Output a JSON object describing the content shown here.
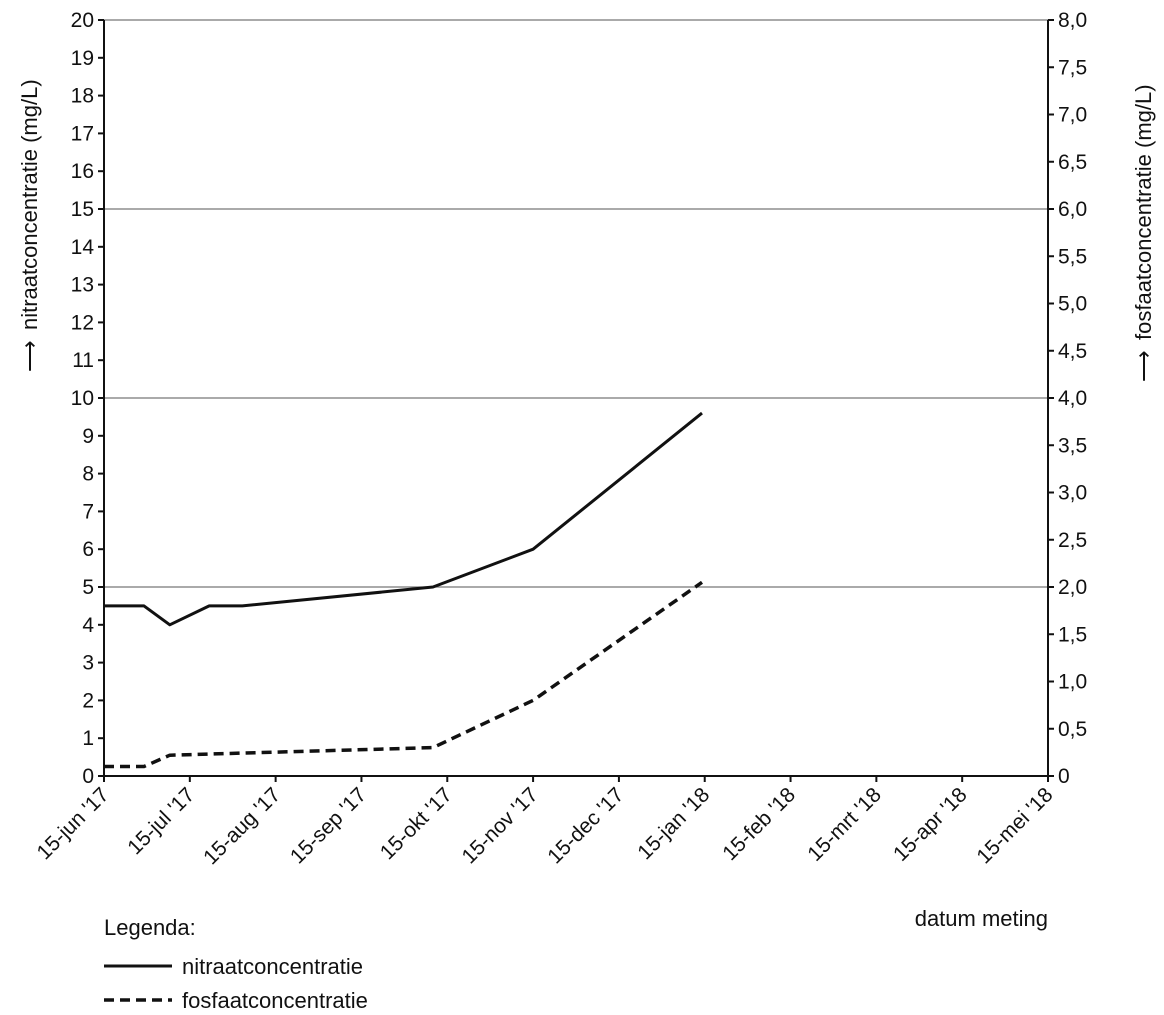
{
  "chart_data": {
    "type": "line",
    "title": "",
    "x": [
      "15-jun '17",
      "15-jul '17",
      "15-aug '17",
      "15-sep '17",
      "15-okt '17",
      "15-nov '17",
      "15-dec '17",
      "15-jan '18",
      "15-feb '18",
      "15-mrt '18",
      "15-apr '18",
      "15-mei '18"
    ],
    "xlabel": "datum meting",
    "ylabel_left": "nitraatconcentratie (mg/L)",
    "ylabel_right": "fosfaatconcentratie (mg/L)",
    "ylim_left": [
      0,
      20
    ],
    "ylim_right": [
      0,
      8.0
    ],
    "yticks_left": [
      "0",
      "1",
      "2",
      "3",
      "4",
      "5",
      "6",
      "7",
      "8",
      "9",
      "10",
      "11",
      "12",
      "13",
      "14",
      "15",
      "16",
      "17",
      "18",
      "19",
      "20"
    ],
    "yticks_right": [
      "0",
      "0,5",
      "1,0",
      "1,5",
      "2,0",
      "2,5",
      "3,0",
      "3,5",
      "4,0",
      "4,5",
      "5,0",
      "5,5",
      "6,0",
      "6,5",
      "7,0",
      "7,5",
      "8,0"
    ],
    "gridlines_left": [
      5,
      10,
      15
    ],
    "series": [
      {
        "name": "nitraatconcentratie",
        "axis": "left",
        "style": "solid",
        "points": [
          {
            "x": "15-jun '17",
            "y": 4.5
          },
          {
            "x": "29-jun '17",
            "y": 4.5
          },
          {
            "x": "8-jul '17",
            "y": 4.0
          },
          {
            "x": "22-jul '17",
            "y": 4.5
          },
          {
            "x": "3-aug '17",
            "y": 4.5
          },
          {
            "x": "10-okt '17",
            "y": 5.0
          },
          {
            "x": "15-nov '17",
            "y": 6.0
          },
          {
            "x": "14-jan '18",
            "y": 9.6
          }
        ]
      },
      {
        "name": "fosfaatconcentratie",
        "axis": "right",
        "style": "dashed",
        "points": [
          {
            "x": "15-jun '17",
            "y": 0.1
          },
          {
            "x": "29-jun '17",
            "y": 0.1
          },
          {
            "x": "8-jul '17",
            "y": 0.22
          },
          {
            "x": "10-okt '17",
            "y": 0.3
          },
          {
            "x": "15-nov '17",
            "y": 0.8
          },
          {
            "x": "14-jan '18",
            "y": 2.05
          }
        ]
      }
    ],
    "legend": {
      "title": "Legenda:",
      "placement": "bottom-left",
      "entries": [
        "nitraatconcentratie",
        "fosfaatconcentratie"
      ]
    },
    "colors": {
      "line": "#111111",
      "grid": "#777777"
    }
  }
}
